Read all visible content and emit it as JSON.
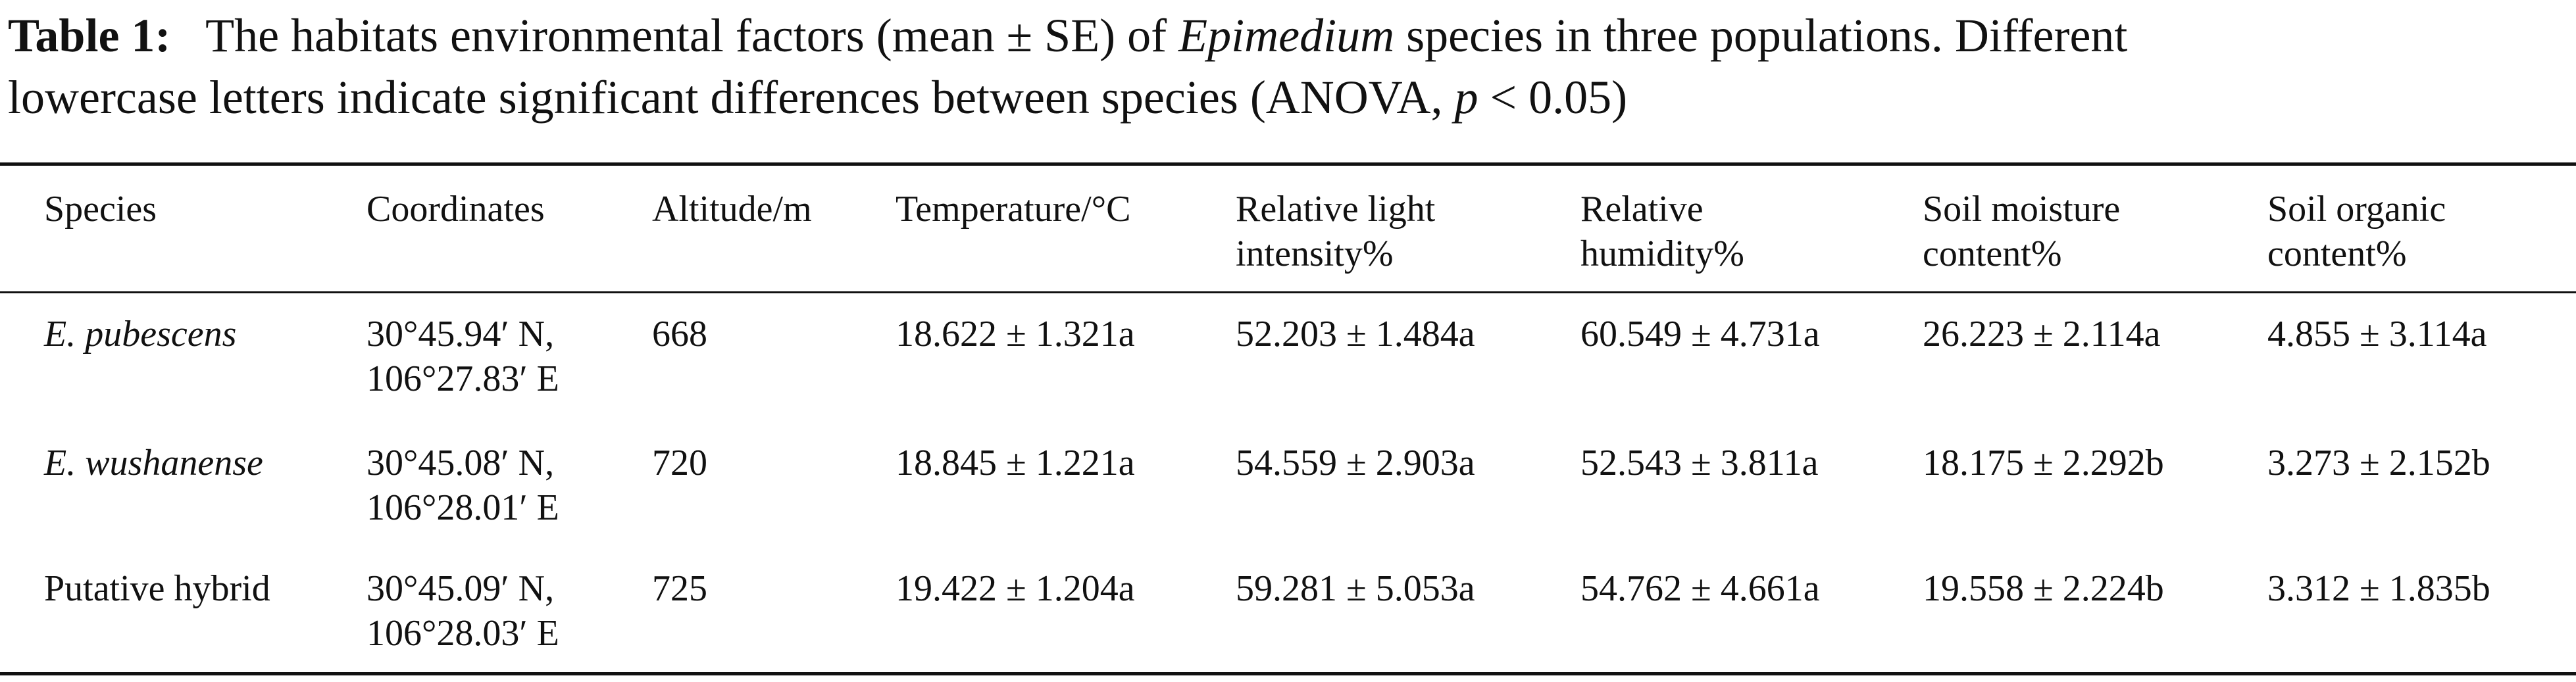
{
  "caption": {
    "label": "Table 1:",
    "line1": [
      "The habitats environmental factors (mean ± SE) of ",
      "Epimedium",
      " species in three populations. Different"
    ],
    "line2": [
      "lowercase letters indicate significant differences between species (ANOVA, ",
      "p",
      " < 0.05)"
    ]
  },
  "table": {
    "headers": [
      [
        "Species"
      ],
      [
        "Coordinates"
      ],
      [
        "Altitude/m"
      ],
      [
        "Temperature/°C"
      ],
      [
        "Relative light",
        "intensity%"
      ],
      [
        "Relative",
        "humidity%"
      ],
      [
        "Soil moisture",
        "content%"
      ],
      [
        "Soil organic",
        "content%"
      ]
    ],
    "rows": [
      [
        [
          "E. pubescens"
        ],
        [
          "30°45.94′ N,",
          "106°27.83′ E"
        ],
        [
          "668"
        ],
        [
          "18.622 ± 1.321a"
        ],
        [
          "52.203 ± 1.484a"
        ],
        [
          "60.549 ± 4.731a"
        ],
        [
          "26.223 ± 2.114a"
        ],
        [
          "4.855 ± 3.114a"
        ]
      ],
      [
        [
          "E. wushanense"
        ],
        [
          "30°45.08′ N,",
          "106°28.01′ E"
        ],
        [
          "720"
        ],
        [
          "18.845 ± 1.221a"
        ],
        [
          "54.559 ± 2.903a"
        ],
        [
          "52.543 ± 3.811a"
        ],
        [
          "18.175 ± 2.292b"
        ],
        [
          "3.273 ± 2.152b"
        ]
      ],
      [
        [
          "Putative hybrid"
        ],
        [
          "30°45.09′ N,",
          "106°28.03′ E"
        ],
        [
          "725"
        ],
        [
          "19.422 ± 1.204a"
        ],
        [
          "59.281 ± 5.053a"
        ],
        [
          "54.762 ± 4.661a"
        ],
        [
          "19.558 ± 2.224b"
        ],
        [
          "3.312 ± 1.835b"
        ]
      ]
    ]
  }
}
